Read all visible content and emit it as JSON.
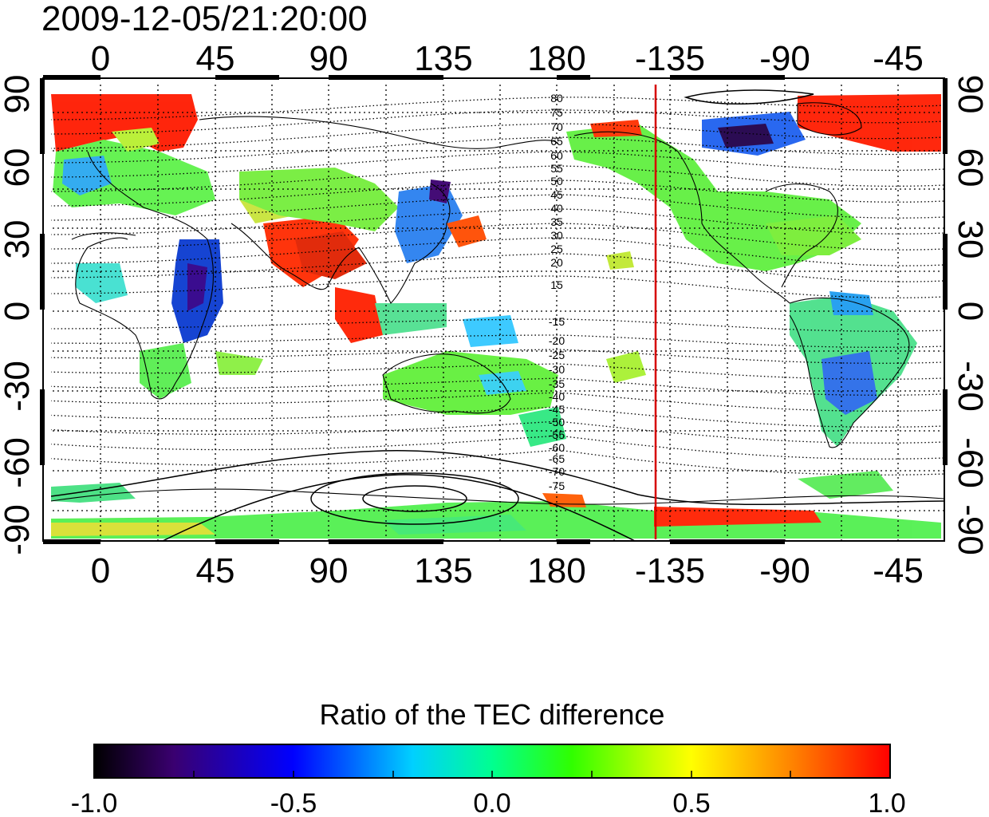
{
  "timestamp": "2009-12-05/21:20:00",
  "x_ticks": [
    "0",
    "45",
    "90",
    "135",
    "180",
    "-135",
    "-90",
    "-45"
  ],
  "y_ticks": [
    "90",
    "60",
    "30",
    "0",
    "-30",
    "-60",
    "-90"
  ],
  "contour_labels_north": [
    "80",
    "75",
    "70",
    "65",
    "60",
    "55",
    "50",
    "45",
    "40",
    "35",
    "30",
    "25",
    "20",
    "15"
  ],
  "contour_labels_south": [
    "-15",
    "-20",
    "-25",
    "-30",
    "-35",
    "-40",
    "-45",
    "-50",
    "-55",
    "-60",
    "-65",
    "-70",
    "-75"
  ],
  "colorbar": {
    "title": "Ratio of the TEC difference",
    "tick_labels": [
      "-1.0",
      "-0.5",
      "0.0",
      "0.5",
      "1.0"
    ],
    "stops": [
      "#000000",
      "#3a0070",
      "#0000ff",
      "#00d0ff",
      "#00ff90",
      "#30ff00",
      "#c0ff00",
      "#ffff00",
      "#ff8000",
      "#ff0000"
    ]
  },
  "colors": {
    "terminator_line": "#d60000",
    "coastline": "#000000",
    "contour": "#000000",
    "grid": "#000000"
  }
}
